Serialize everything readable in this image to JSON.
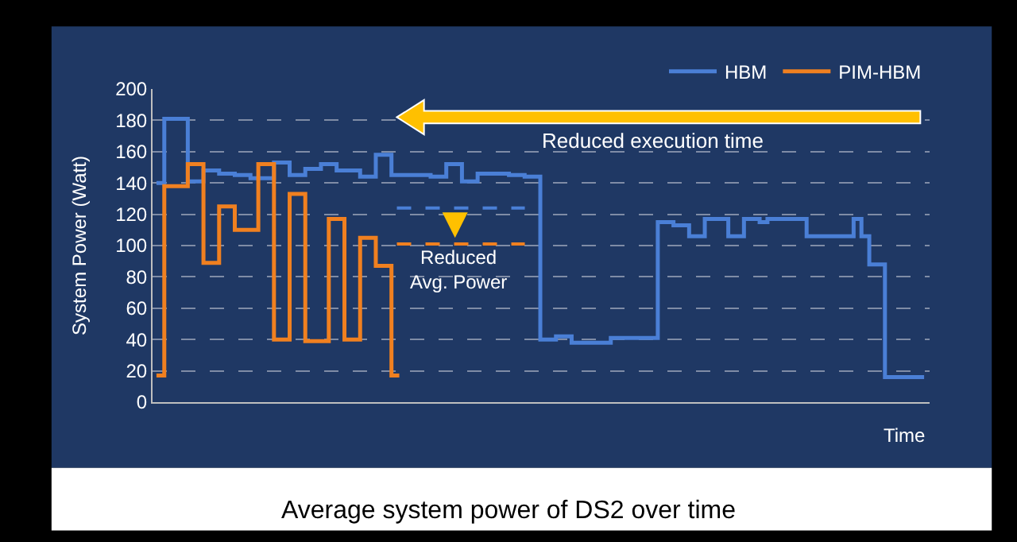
{
  "chart_data": {
    "type": "step",
    "title": "Average system power of DS2 over time",
    "xlabel": "Time",
    "ylabel": "System Power (Watt)",
    "categories": [
      null,
      null,
      null,
      null,
      null,
      null,
      null,
      null,
      null,
      null,
      null,
      null,
      null,
      null,
      null,
      null,
      null,
      null,
      null,
      null,
      null,
      null,
      null,
      null,
      null,
      null,
      null,
      null,
      null,
      null,
      null,
      null,
      null,
      null,
      null,
      null,
      null,
      null,
      null,
      null,
      null,
      null,
      null,
      null,
      null,
      null,
      null,
      null,
      null,
      null,
      null,
      null,
      null,
      null,
      null,
      null,
      null,
      null,
      null,
      null,
      null,
      null,
      null,
      null,
      null,
      null,
      null,
      null,
      null,
      null,
      null,
      null,
      null,
      null,
      null,
      null,
      null,
      null,
      null,
      null,
      null,
      null,
      null,
      null,
      null,
      null,
      null,
      null,
      null,
      null,
      null,
      null,
      null,
      null,
      null,
      null,
      null,
      null,
      null
    ],
    "series": [
      {
        "name": "HBM",
        "color": "#4a7fd6",
        "values": [
          140,
          181,
          181,
          181,
          141,
          141,
          148,
          148,
          146,
          146,
          145,
          145,
          143,
          143,
          143,
          153,
          153,
          145,
          145,
          149,
          149,
          152,
          152,
          148,
          148,
          148,
          144,
          144,
          158,
          158,
          145,
          145,
          145,
          145,
          145,
          144,
          144,
          152,
          152,
          141,
          141,
          146,
          146,
          146,
          146,
          145,
          145,
          144,
          144,
          40,
          40,
          42,
          42,
          38,
          38,
          38,
          38,
          38,
          41,
          41,
          41,
          41,
          41,
          41,
          115,
          115,
          113,
          113,
          106,
          106,
          117,
          117,
          117,
          106,
          106,
          117,
          117,
          115,
          117,
          117,
          117,
          117,
          117,
          106,
          106,
          106,
          106,
          106,
          106,
          117,
          106,
          88,
          88,
          16,
          16,
          16,
          16,
          16,
          16
        ]
      },
      {
        "name": "PIM-HBM",
        "color": "#f08020",
        "values": [
          17,
          138,
          138,
          138,
          152,
          152,
          89,
          89,
          125,
          125,
          110,
          110,
          110,
          152,
          152,
          40,
          40,
          133,
          133,
          39,
          39,
          39,
          117,
          117,
          40,
          40,
          105,
          105,
          87,
          87,
          17,
          17,
          null,
          null,
          null,
          null,
          null,
          null,
          null,
          null,
          null,
          null,
          null,
          null,
          null,
          null,
          null,
          null,
          null,
          null,
          null,
          null,
          null,
          null,
          null,
          null,
          null,
          null,
          null,
          null,
          null,
          null,
          null,
          null,
          null,
          null,
          null,
          null,
          null,
          null,
          null,
          null,
          null,
          null,
          null,
          null,
          null,
          null,
          null,
          null,
          null,
          null,
          null,
          null,
          null,
          null,
          null,
          null,
          null,
          null,
          null,
          null,
          null,
          null,
          null,
          null,
          null,
          null,
          null
        ]
      }
    ],
    "ylim": [
      0,
      200
    ],
    "yticks": [
      0,
      20,
      40,
      60,
      80,
      100,
      120,
      140,
      160,
      180,
      200
    ],
    "grid": "y",
    "legend": "top right",
    "ref_lines": [
      {
        "axis": "y",
        "value": 124,
        "color": "#4a7fd6",
        "line_style": "dashed"
      },
      {
        "axis": "y",
        "value": 101,
        "color": "#f08020",
        "line_style": "dashed"
      }
    ],
    "annotations": [
      "Reduced execution time",
      "Reduced\nAvg. Power"
    ]
  }
}
